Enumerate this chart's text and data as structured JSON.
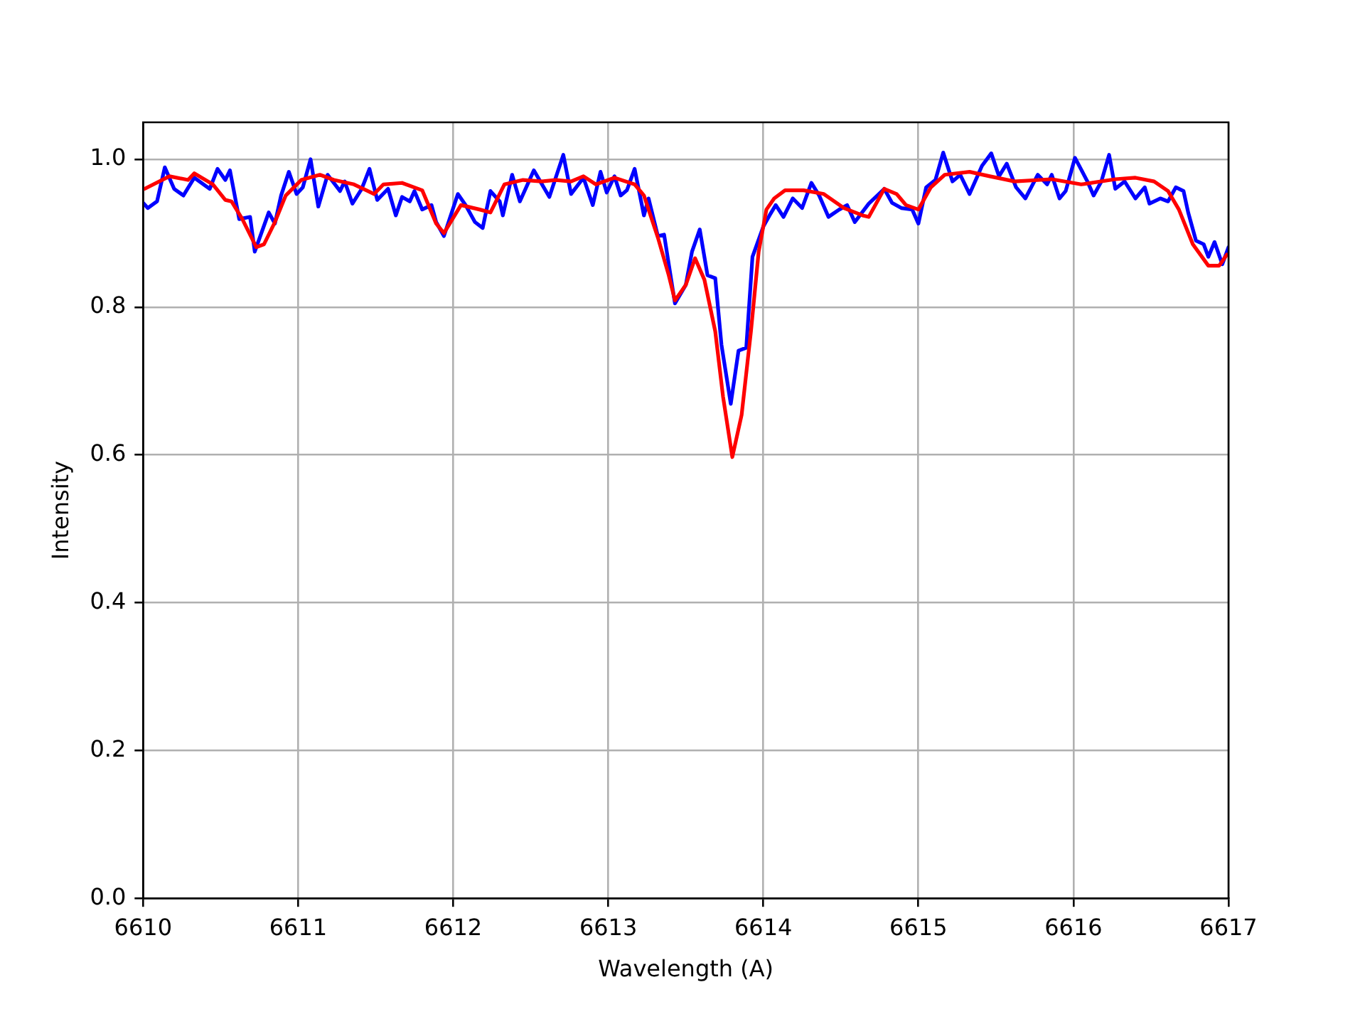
{
  "chart_data": {
    "type": "line",
    "xlabel": "Wavelength (A)",
    "ylabel": "Intensity",
    "xlim": [
      6610,
      6617
    ],
    "xticks": [
      6610,
      6611,
      6612,
      6613,
      6614,
      6615,
      6616,
      6617
    ],
    "ylim": [
      0,
      1.05
    ],
    "yticks": [
      {
        "value": 0,
        "label": "0.0"
      },
      0.2,
      0.4,
      0.6,
      0.8,
      {
        "value": 1,
        "label": "1.0"
      }
    ],
    "grid": true,
    "legend": false,
    "marker": "none",
    "line_style": "solid",
    "series": [
      {
        "color": "#ff0000",
        "x": [
          6610.01,
          6610.17,
          6610.29,
          6610.33,
          6610.45,
          6610.53,
          6610.57,
          6610.64,
          6610.73,
          6610.78,
          6610.85,
          6610.92,
          6611.02,
          6611.14,
          6611.23,
          6611.36,
          6611.49,
          6611.55,
          6611.67,
          6611.8,
          6611.89,
          6611.94,
          6612.05,
          6612.17,
          6612.24,
          6612.33,
          6612.45,
          6612.57,
          6612.66,
          6612.76,
          6612.84,
          6612.92,
          6613.04,
          6613.17,
          6613.23,
          6613.32,
          6613.39,
          6613.43,
          6613.5,
          6613.56,
          6613.62,
          6613.69,
          6613.74,
          6613.8,
          6613.86,
          6613.92,
          6613.97,
          6614.02,
          6614.07,
          6614.14,
          6614.26,
          6614.39,
          6614.52,
          6614.64,
          6614.68,
          6614.78,
          6614.86,
          6614.92,
          6615.0,
          6615.08,
          6615.17,
          6615.33,
          6615.46,
          6615.62,
          6615.86,
          6616.05,
          6616.27,
          6616.4,
          6616.52,
          6616.61,
          6616.68,
          6616.77,
          6616.87,
          6616.94,
          6616.99
        ],
        "values": [
          0.96,
          0.977,
          0.972,
          0.981,
          0.966,
          0.945,
          0.943,
          0.919,
          0.881,
          0.885,
          0.915,
          0.951,
          0.972,
          0.979,
          0.972,
          0.966,
          0.953,
          0.966,
          0.968,
          0.958,
          0.913,
          0.9,
          0.938,
          0.932,
          0.928,
          0.966,
          0.972,
          0.97,
          0.972,
          0.97,
          0.977,
          0.966,
          0.975,
          0.966,
          0.951,
          0.894,
          0.843,
          0.809,
          0.83,
          0.866,
          0.837,
          0.767,
          0.679,
          0.597,
          0.654,
          0.767,
          0.875,
          0.932,
          0.947,
          0.958,
          0.958,
          0.953,
          0.934,
          0.924,
          0.922,
          0.96,
          0.953,
          0.938,
          0.932,
          0.962,
          0.979,
          0.983,
          0.977,
          0.97,
          0.973,
          0.966,
          0.973,
          0.975,
          0.97,
          0.957,
          0.932,
          0.885,
          0.856,
          0.856,
          0.871
        ]
      },
      {
        "color": "#0000ff",
        "x": [
          6610,
          6610.03,
          6610.09,
          6610.14,
          6610.2,
          6610.26,
          6610.33,
          6610.39,
          6610.43,
          6610.48,
          6610.53,
          6610.56,
          6610.62,
          6610.69,
          6610.72,
          6610.81,
          6610.85,
          6610.89,
          6610.94,
          6610.99,
          6611.03,
          6611.08,
          6611.13,
          6611.19,
          6611.27,
          6611.3,
          6611.35,
          6611.41,
          6611.46,
          6611.51,
          6611.58,
          6611.63,
          6611.67,
          6611.72,
          6611.75,
          6611.8,
          6611.86,
          6611.89,
          6611.94,
          6612.03,
          6612.08,
          6612.14,
          6612.19,
          6612.24,
          6612.3,
          6612.32,
          6612.38,
          6612.43,
          6612.52,
          6612.62,
          6612.71,
          6612.76,
          6612.84,
          6612.9,
          6612.95,
          6612.99,
          6613.04,
          6613.08,
          6613.12,
          6613.17,
          6613.23,
          6613.26,
          6613.32,
          6613.36,
          6613.43,
          6613.5,
          6613.54,
          6613.59,
          6613.64,
          6613.69,
          6613.73,
          6613.79,
          6613.84,
          6613.89,
          6613.93,
          6614,
          6614.04,
          6614.08,
          6614.13,
          6614.19,
          6614.25,
          6614.31,
          6614.36,
          6614.42,
          6614.49,
          6614.54,
          6614.59,
          6614.68,
          6614.78,
          6614.83,
          6614.89,
          6614.96,
          6615,
          6615.05,
          6615.11,
          6615.16,
          6615.22,
          6615.27,
          6615.33,
          6615.41,
          6615.47,
          6615.52,
          6615.57,
          6615.63,
          6615.69,
          6615.77,
          6615.83,
          6615.86,
          6615.91,
          6615.95,
          6616.01,
          6616.09,
          6616.13,
          6616.18,
          6616.23,
          6616.27,
          6616.33,
          6616.4,
          6616.46,
          6616.49,
          6616.56,
          6616.61,
          6616.66,
          6616.71,
          6616.74,
          6616.79,
          6616.84,
          6616.87,
          6616.91,
          6616.96,
          6617
        ],
        "values": [
          0.941,
          0.934,
          0.943,
          0.989,
          0.96,
          0.951,
          0.975,
          0.966,
          0.96,
          0.987,
          0.972,
          0.985,
          0.919,
          0.922,
          0.875,
          0.928,
          0.913,
          0.951,
          0.983,
          0.953,
          0.962,
          1.0,
          0.936,
          0.979,
          0.957,
          0.97,
          0.94,
          0.96,
          0.987,
          0.945,
          0.96,
          0.924,
          0.949,
          0.943,
          0.957,
          0.932,
          0.938,
          0.915,
          0.896,
          0.953,
          0.938,
          0.915,
          0.907,
          0.957,
          0.943,
          0.924,
          0.979,
          0.943,
          0.985,
          0.949,
          1.006,
          0.953,
          0.975,
          0.938,
          0.983,
          0.955,
          0.977,
          0.951,
          0.958,
          0.987,
          0.924,
          0.947,
          0.896,
          0.898,
          0.805,
          0.83,
          0.875,
          0.905,
          0.843,
          0.839,
          0.749,
          0.669,
          0.741,
          0.745,
          0.868,
          0.909,
          0.924,
          0.938,
          0.922,
          0.947,
          0.934,
          0.968,
          0.951,
          0.922,
          0.932,
          0.938,
          0.915,
          0.94,
          0.96,
          0.941,
          0.934,
          0.932,
          0.913,
          0.962,
          0.972,
          1.009,
          0.97,
          0.979,
          0.953,
          0.991,
          1.008,
          0.977,
          0.994,
          0.962,
          0.947,
          0.979,
          0.966,
          0.979,
          0.947,
          0.957,
          1.002,
          0.97,
          0.951,
          0.97,
          1.006,
          0.96,
          0.97,
          0.947,
          0.962,
          0.94,
          0.947,
          0.943,
          0.962,
          0.957,
          0.928,
          0.89,
          0.885,
          0.868,
          0.888,
          0.858,
          0.881
        ]
      }
    ]
  }
}
